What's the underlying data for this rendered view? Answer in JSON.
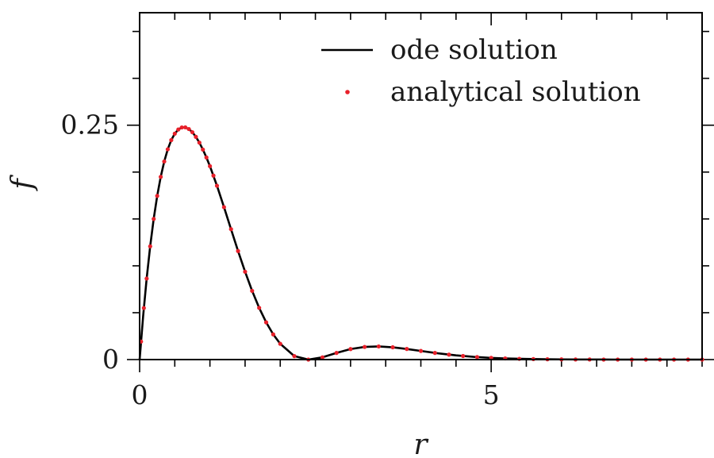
{
  "chart_data": {
    "type": "line",
    "title": "",
    "xlabel": "r",
    "ylabel": "f",
    "xlim": [
      0,
      8
    ],
    "ylim": [
      0,
      0.37
    ],
    "x_ticks": [
      {
        "value": 0,
        "label": "0"
      },
      {
        "value": 5,
        "label": "5"
      }
    ],
    "y_ticks": [
      {
        "value": 0,
        "label": "0"
      },
      {
        "value": 0.25,
        "label": "0.25"
      }
    ],
    "x_minor_step": 0.5,
    "y_minor_step": 0.05,
    "grid": false,
    "legend_position": "top-right",
    "series": [
      {
        "name": "ode solution",
        "style": "line",
        "color": "#000000",
        "x": [
          0,
          0.05,
          0.1,
          0.15,
          0.2,
          0.25,
          0.3,
          0.35,
          0.4,
          0.45,
          0.5,
          0.55,
          0.6,
          0.65,
          0.7,
          0.75,
          0.8,
          0.85,
          0.9,
          0.95,
          1.0,
          1.1,
          1.2,
          1.3,
          1.4,
          1.5,
          1.6,
          1.7,
          1.8,
          1.9,
          2.0,
          2.2,
          2.4,
          2.6,
          2.8,
          3.0,
          3.2,
          3.4,
          3.6,
          3.8,
          4.0,
          4.25,
          4.5,
          4.75,
          5.0,
          5.25,
          5.5,
          5.75,
          6.0,
          6.25,
          6.5,
          6.75,
          7.0,
          7.25,
          7.5,
          7.75,
          8.0
        ],
        "y": [
          0,
          0.0463,
          0.0864,
          0.1208,
          0.15,
          0.1746,
          0.1949,
          0.2113,
          0.2243,
          0.2341,
          0.241,
          0.2454,
          0.2476,
          0.2477,
          0.2459,
          0.2425,
          0.2376,
          0.2314,
          0.224,
          0.2156,
          0.2063,
          0.1854,
          0.1626,
          0.1391,
          0.1158,
          0.0937,
          0.0733,
          0.0552,
          0.0397,
          0.0269,
          0.0168,
          0.0037,
          0.0,
          0.0024,
          0.0071,
          0.0112,
          0.0135,
          0.014,
          0.0131,
          0.0113,
          0.0092,
          0.0066,
          0.0045,
          0.0029,
          0.0018,
          0.0011,
          0.0007,
          0.0004,
          0.0002,
          0.0001,
          0.0001,
          0.0,
          0.0,
          0.0,
          0.0,
          0.0,
          0.0
        ]
      },
      {
        "name": "analytical solution",
        "style": "points",
        "color": "#e8202a",
        "x": [
          0.02,
          0.06,
          0.1,
          0.15,
          0.2,
          0.25,
          0.3,
          0.35,
          0.4,
          0.45,
          0.5,
          0.55,
          0.6,
          0.65,
          0.7,
          0.75,
          0.8,
          0.85,
          0.9,
          0.95,
          1.0,
          1.05,
          1.1,
          1.2,
          1.3,
          1.4,
          1.5,
          1.6,
          1.7,
          1.8,
          1.9,
          2.0,
          2.2,
          2.4,
          2.6,
          2.8,
          3.0,
          3.2,
          3.4,
          3.6,
          3.8,
          4.0,
          4.2,
          4.4,
          4.6,
          4.8,
          5.0,
          5.2,
          5.4,
          5.6,
          5.8,
          6.0,
          6.2,
          6.4,
          6.6,
          6.8,
          7.0,
          7.2,
          7.4,
          7.6,
          7.8,
          8.0
        ],
        "y": [
          0.0192,
          0.055,
          0.0864,
          0.1208,
          0.15,
          0.1746,
          0.1949,
          0.2113,
          0.2243,
          0.2341,
          0.241,
          0.2454,
          0.2476,
          0.2477,
          0.2459,
          0.2425,
          0.2376,
          0.2314,
          0.224,
          0.2156,
          0.2063,
          0.1962,
          0.1854,
          0.1626,
          0.1391,
          0.1158,
          0.0937,
          0.0733,
          0.0552,
          0.0397,
          0.0269,
          0.0168,
          0.0037,
          0.0,
          0.0024,
          0.0071,
          0.0112,
          0.0135,
          0.014,
          0.0131,
          0.0113,
          0.0092,
          0.0071,
          0.0053,
          0.0038,
          0.0027,
          0.0018,
          0.0012,
          0.0008,
          0.0005,
          0.0003,
          0.0002,
          0.0001,
          0.0001,
          0.0,
          0.0,
          0.0,
          0.0,
          0.0,
          0.0,
          0.0,
          0.0
        ]
      }
    ]
  }
}
